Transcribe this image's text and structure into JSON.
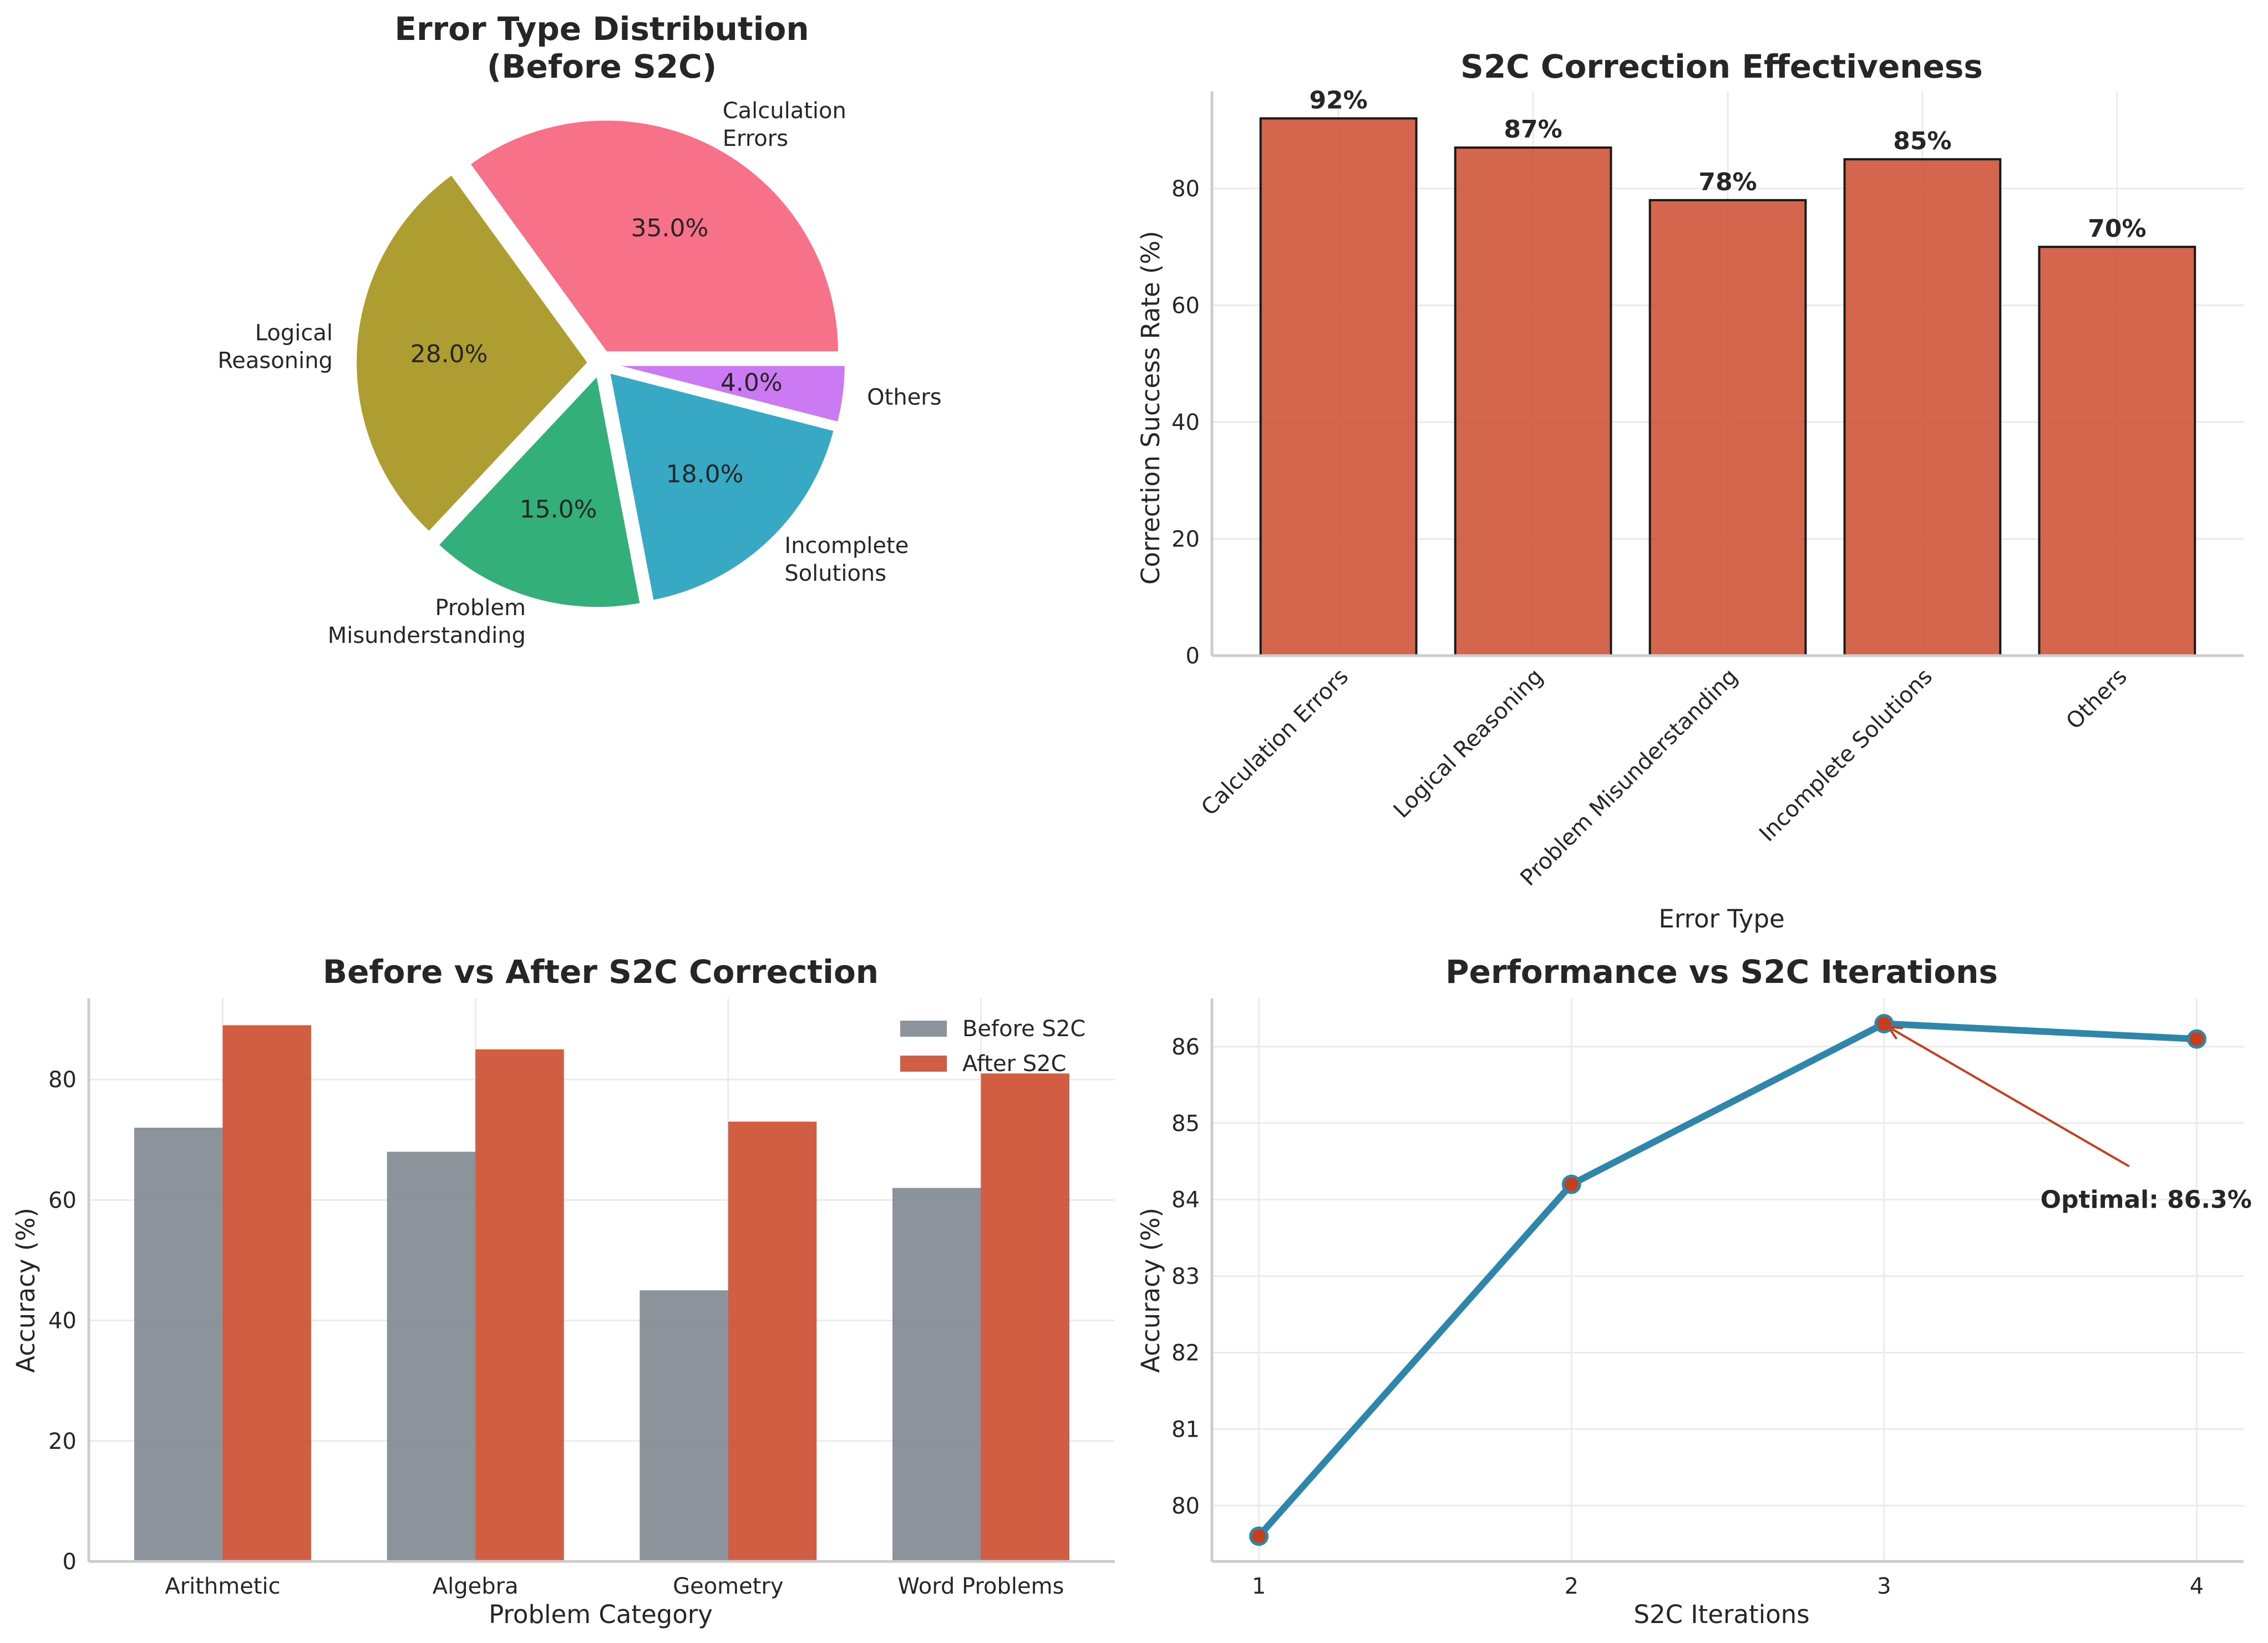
{
  "chart_data": [
    {
      "type": "pie",
      "title": "Error Type Distribution\n(Before S2C)",
      "title_lines": [
        "Error Type Distribution",
        "(Before S2C)"
      ],
      "slices": [
        {
          "label": "Calculation Errors",
          "label_lines": [
            "Calculation",
            "Errors"
          ],
          "value": 35.0,
          "pct_label": "35.0%",
          "color": "#f77189"
        },
        {
          "label": "Logical Reasoning",
          "label_lines": [
            "Logical",
            "Reasoning"
          ],
          "value": 28.0,
          "pct_label": "28.0%",
          "color": "#ae9d31"
        },
        {
          "label": "Problem Misunderstanding",
          "label_lines": [
            "Problem",
            "Misunderstanding"
          ],
          "value": 15.0,
          "pct_label": "15.0%",
          "color": "#33b07a"
        },
        {
          "label": "Incomplete Solutions",
          "label_lines": [
            "Incomplete",
            "Solutions"
          ],
          "value": 18.0,
          "pct_label": "18.0%",
          "color": "#38a9c5"
        },
        {
          "label": "Others",
          "label_lines": [
            "Others"
          ],
          "value": 4.0,
          "pct_label": "4.0%",
          "color": "#cc7af4"
        }
      ],
      "start_angle": 0,
      "direction": "counterclockwise",
      "exploded": true
    },
    {
      "type": "bar",
      "title": "S2C Correction Effectiveness",
      "xlabel": "Error Type",
      "ylabel": "Correction Success Rate (%)",
      "categories": [
        "Calculation Errors",
        "Logical Reasoning",
        "Problem Misunderstanding",
        "Incomplete Solutions",
        "Others"
      ],
      "values": [
        92,
        87,
        78,
        85,
        70
      ],
      "value_labels": [
        "92%",
        "87%",
        "78%",
        "85%",
        "70%"
      ],
      "ylim": [
        0,
        96.6
      ],
      "yticks": [
        0,
        20,
        40,
        60,
        80
      ],
      "grid": true,
      "bar_color": "#cc4b2e",
      "edge_color": "#1a1a1a",
      "xtick_rotation": 45
    },
    {
      "type": "bar",
      "title": "Before vs After S2C Correction",
      "xlabel": "Problem Category",
      "ylabel": "Accuracy (%)",
      "categories": [
        "Arithmetic",
        "Algebra",
        "Geometry",
        "Word Problems"
      ],
      "series": [
        {
          "name": "Before S2C",
          "values": [
            72,
            68,
            45,
            62
          ],
          "color": "#7f8790"
        },
        {
          "name": "After S2C",
          "values": [
            89,
            85,
            73,
            81
          ],
          "color": "#cc4b2e"
        }
      ],
      "ylim": [
        0,
        93.45
      ],
      "yticks": [
        0,
        20,
        40,
        60,
        80
      ],
      "grid": true,
      "legend": "top-right"
    },
    {
      "type": "line",
      "title": "Performance vs S2C Iterations",
      "xlabel": "S2C Iterations",
      "ylabel": "Accuracy (%)",
      "x": [
        1,
        2,
        3,
        4
      ],
      "series": [
        {
          "name": "Accuracy",
          "values": [
            79.6,
            84.2,
            86.3,
            86.1
          ],
          "color": "#2e86ab",
          "marker_color": "#c73e1d"
        }
      ],
      "xlim": [
        0.85,
        4.15
      ],
      "ylim": [
        79.27,
        86.63
      ],
      "xticks": [
        1,
        2,
        3,
        4
      ],
      "yticks": [
        80,
        81,
        82,
        83,
        84,
        85,
        86
      ],
      "grid": true,
      "annotation": {
        "text": "Optimal: 86.3%",
        "x": 3,
        "y": 86.3,
        "text_x": 3.5,
        "text_y": 84.0,
        "arrow_color": "#c73e1d"
      }
    }
  ]
}
